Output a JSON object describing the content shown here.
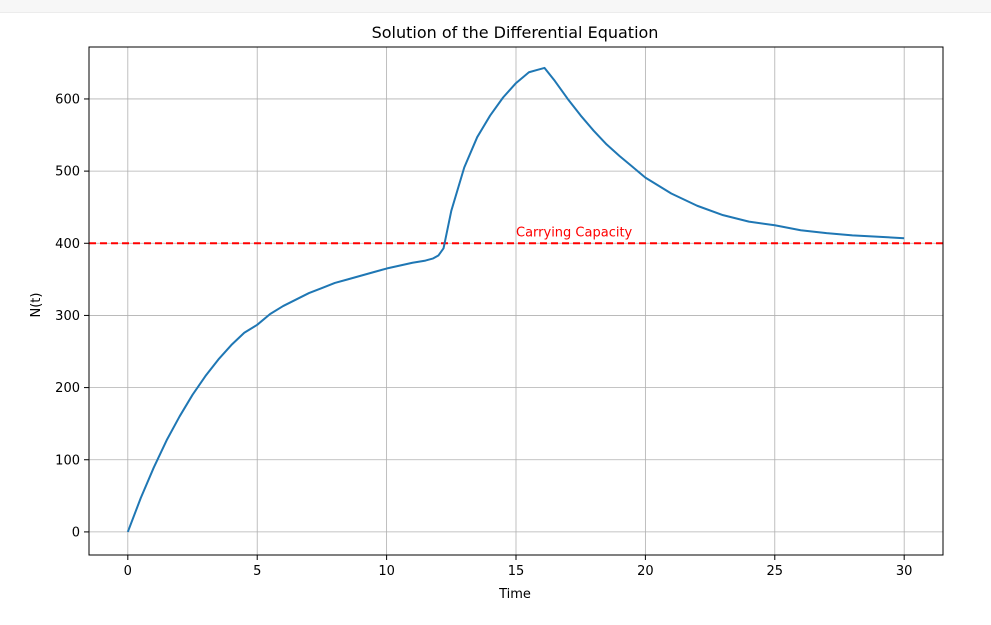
{
  "chart_data": {
    "type": "line",
    "title": "Solution of the Differential Equation",
    "xlabel": "Time",
    "ylabel": "N(t)",
    "xlim": [
      -1.5,
      31.5
    ],
    "ylim": [
      -32,
      672
    ],
    "xticks": [
      0,
      5,
      10,
      15,
      20,
      25,
      30
    ],
    "yticks": [
      0,
      100,
      200,
      300,
      400,
      500,
      600
    ],
    "grid": true,
    "series": [
      {
        "color": "#1f77b4",
        "x": [
          0,
          0.5,
          1,
          1.5,
          2,
          2.5,
          3,
          3.5,
          4,
          4.5,
          5,
          5.5,
          6,
          6.5,
          7,
          7.5,
          8,
          8.5,
          9,
          9.5,
          10,
          10.5,
          11,
          11.5,
          11.8,
          12.0,
          12.2,
          12.5,
          13.0,
          13.5,
          14.0,
          14.5,
          15.0,
          15.5,
          15.8,
          16.1,
          16.5,
          17,
          17.5,
          18,
          18.5,
          19,
          19.5,
          20,
          21,
          22,
          23,
          24,
          25,
          26,
          27,
          28,
          29,
          30
        ],
        "y": [
          0,
          47,
          89,
          127,
          160,
          190,
          216,
          239,
          259,
          276,
          287,
          302,
          313,
          322,
          331,
          338,
          345,
          350,
          355,
          360,
          365,
          369,
          373,
          376,
          379,
          383,
          393,
          445,
          505,
          547,
          577,
          602,
          622,
          637,
          640,
          643,
          625,
          600,
          577,
          556,
          537,
          521,
          506,
          491,
          469,
          452,
          439,
          430,
          425,
          418,
          414,
          411,
          409,
          407
        ]
      }
    ],
    "hlines": [
      {
        "y": 400,
        "color": "#ff0000",
        "style": "dashed"
      }
    ],
    "annotations": [
      {
        "text": "Carrying Capacity",
        "x": 15,
        "y": 415,
        "color": "#ff0000"
      }
    ]
  }
}
